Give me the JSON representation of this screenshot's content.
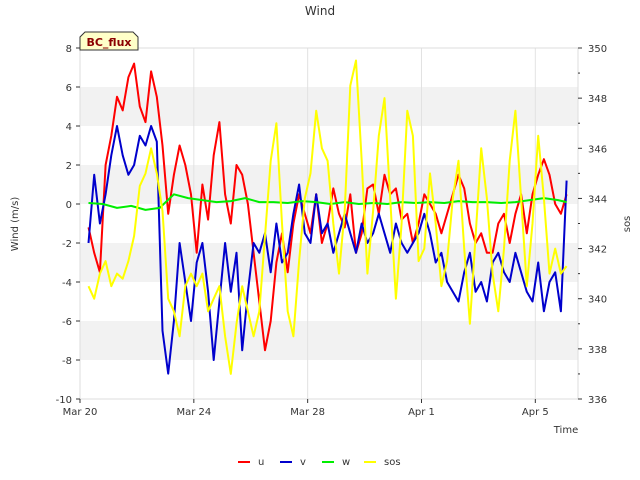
{
  "chart_data": {
    "type": "line",
    "title": "Wind",
    "badge": "BC_flux",
    "xlabel": "Time",
    "ylabel": "Wind (m/s)",
    "y2label": "sos",
    "xlim": [
      0,
      17.5
    ],
    "ylim": [
      -10,
      8
    ],
    "y2lim": [
      336,
      350
    ],
    "x_ticks": [
      {
        "value": 0,
        "label": "Mar 20"
      },
      {
        "value": 4,
        "label": "Mar 24"
      },
      {
        "value": 8,
        "label": "Mar 28"
      },
      {
        "value": 12,
        "label": "Apr 1"
      },
      {
        "value": 16,
        "label": "Apr 5"
      }
    ],
    "y_ticks": [
      -10,
      -8,
      -6,
      -4,
      -2,
      0,
      2,
      4,
      6,
      8
    ],
    "y2_ticks": [
      336,
      338,
      340,
      342,
      344,
      346,
      348,
      350
    ],
    "bands": [
      [
        -8,
        -6
      ],
      [
        -4,
        -2
      ],
      [
        0,
        2
      ],
      [
        4,
        6
      ]
    ],
    "series": [
      {
        "name": "u",
        "axis": "left",
        "color": "#ff0000",
        "x": [
          0.3,
          0.5,
          0.7,
          0.9,
          1.1,
          1.3,
          1.5,
          1.7,
          1.9,
          2.1,
          2.3,
          2.5,
          2.7,
          2.9,
          3.1,
          3.3,
          3.5,
          3.7,
          3.9,
          4.1,
          4.3,
          4.5,
          4.7,
          4.9,
          5.1,
          5.3,
          5.5,
          5.7,
          5.9,
          6.1,
          6.3,
          6.5,
          6.7,
          6.9,
          7.1,
          7.3,
          7.5,
          7.7,
          7.9,
          8.1,
          8.3,
          8.5,
          8.7,
          8.9,
          9.1,
          9.3,
          9.5,
          9.7,
          9.9,
          10.1,
          10.3,
          10.5,
          10.7,
          10.9,
          11.1,
          11.3,
          11.5,
          11.7,
          11.9,
          12.1,
          12.3,
          12.5,
          12.7,
          12.9,
          13.1,
          13.3,
          13.5,
          13.7,
          13.9,
          14.1,
          14.3,
          14.5,
          14.7,
          14.9,
          15.1,
          15.3,
          15.5,
          15.7,
          15.9,
          16.1,
          16.3,
          16.5,
          16.7,
          16.9,
          17.1
        ],
        "values": [
          -1.2,
          -2.5,
          -3.5,
          2.0,
          3.5,
          5.5,
          4.8,
          6.5,
          7.2,
          5.0,
          4.2,
          6.8,
          5.5,
          3.0,
          -0.5,
          1.5,
          3.0,
          2.0,
          0.5,
          -2.5,
          1.0,
          -0.8,
          2.5,
          4.2,
          0.5,
          -1.0,
          2.0,
          1.5,
          0.0,
          -2.5,
          -5.0,
          -7.5,
          -6.0,
          -3.0,
          -1.5,
          -3.5,
          -1.0,
          0.5,
          -0.5,
          -1.5,
          0.5,
          -2.0,
          -1.0,
          0.8,
          -0.5,
          -1.2,
          0.5,
          -2.5,
          -1.5,
          0.8,
          1.0,
          -0.5,
          1.5,
          0.5,
          0.8,
          -0.8,
          -0.5,
          -2.0,
          -1.0,
          0.5,
          0.0,
          -0.5,
          -1.5,
          -0.5,
          0.5,
          1.5,
          0.8,
          -1.0,
          -2.0,
          -1.5,
          -2.5,
          -2.5,
          -1.0,
          -0.5,
          -2.0,
          -0.5,
          0.5,
          -1.5,
          0.5,
          1.5,
          2.3,
          1.5,
          0.0,
          -0.5,
          0.5
        ]
      },
      {
        "name": "v",
        "axis": "left",
        "color": "#0000cc",
        "x": [
          0.3,
          0.5,
          0.7,
          0.9,
          1.1,
          1.3,
          1.5,
          1.7,
          1.9,
          2.1,
          2.3,
          2.5,
          2.7,
          2.9,
          3.1,
          3.3,
          3.5,
          3.7,
          3.9,
          4.1,
          4.3,
          4.5,
          4.7,
          4.9,
          5.1,
          5.3,
          5.5,
          5.7,
          5.9,
          6.1,
          6.3,
          6.5,
          6.7,
          6.9,
          7.1,
          7.3,
          7.5,
          7.7,
          7.9,
          8.1,
          8.3,
          8.5,
          8.7,
          8.9,
          9.1,
          9.3,
          9.5,
          9.7,
          9.9,
          10.1,
          10.3,
          10.5,
          10.7,
          10.9,
          11.1,
          11.3,
          11.5,
          11.7,
          11.9,
          12.1,
          12.3,
          12.5,
          12.7,
          12.9,
          13.1,
          13.3,
          13.5,
          13.7,
          13.9,
          14.1,
          14.3,
          14.5,
          14.7,
          14.9,
          15.1,
          15.3,
          15.5,
          15.7,
          15.9,
          16.1,
          16.3,
          16.5,
          16.7,
          16.9,
          17.1
        ],
        "values": [
          -2.0,
          1.5,
          -1.0,
          0.5,
          2.5,
          4.0,
          2.5,
          1.5,
          2.0,
          3.5,
          3.0,
          4.0,
          3.2,
          -6.5,
          -8.7,
          -6.0,
          -2.0,
          -4.0,
          -6.0,
          -3.0,
          -2.0,
          -4.5,
          -8.0,
          -5.0,
          -2.0,
          -4.5,
          -2.5,
          -7.5,
          -4.5,
          -2.0,
          -2.5,
          -1.5,
          -3.5,
          -1.0,
          -3.0,
          -2.5,
          -0.5,
          1.0,
          -1.5,
          -2.0,
          0.5,
          -1.5,
          -1.0,
          -2.5,
          -1.5,
          -0.5,
          -1.5,
          -2.5,
          -1.0,
          -2.0,
          -1.5,
          -0.5,
          -1.5,
          -2.5,
          -1.0,
          -2.0,
          -2.5,
          -2.0,
          -1.5,
          -0.5,
          -1.5,
          -3.0,
          -2.5,
          -4.0,
          -4.5,
          -5.0,
          -3.5,
          -2.5,
          -4.5,
          -4.0,
          -5.0,
          -3.0,
          -2.5,
          -3.5,
          -4.0,
          -2.5,
          -3.5,
          -4.5,
          -5.0,
          -3.0,
          -5.5,
          -4.0,
          -3.5,
          -5.5,
          1.2
        ]
      },
      {
        "name": "w",
        "axis": "left",
        "color": "#00ee00",
        "x": [
          0.3,
          0.8,
          1.3,
          1.8,
          2.3,
          2.8,
          3.3,
          3.8,
          4.3,
          4.8,
          5.3,
          5.8,
          6.3,
          6.8,
          7.3,
          7.8,
          8.3,
          8.8,
          9.3,
          9.8,
          10.3,
          10.8,
          11.3,
          11.8,
          12.3,
          12.8,
          13.3,
          13.8,
          14.3,
          14.8,
          15.3,
          15.8,
          16.3,
          16.8,
          17.1
        ],
        "values": [
          0.05,
          0.0,
          -0.2,
          -0.1,
          -0.3,
          -0.2,
          0.5,
          0.3,
          0.2,
          0.1,
          0.15,
          0.3,
          0.1,
          0.1,
          0.05,
          0.15,
          0.1,
          0.0,
          0.1,
          0.0,
          0.05,
          0.0,
          0.1,
          0.05,
          0.1,
          0.05,
          0.15,
          0.1,
          0.1,
          0.05,
          0.1,
          0.2,
          0.3,
          0.2,
          0.1
        ]
      },
      {
        "name": "sos",
        "axis": "right",
        "color": "#ffff00",
        "x": [
          0.3,
          0.5,
          0.7,
          0.9,
          1.1,
          1.3,
          1.5,
          1.7,
          1.9,
          2.1,
          2.3,
          2.5,
          2.7,
          2.9,
          3.1,
          3.3,
          3.5,
          3.7,
          3.9,
          4.1,
          4.3,
          4.5,
          4.7,
          4.9,
          5.1,
          5.3,
          5.5,
          5.7,
          5.9,
          6.1,
          6.3,
          6.5,
          6.7,
          6.9,
          7.1,
          7.3,
          7.5,
          7.7,
          7.9,
          8.1,
          8.3,
          8.5,
          8.7,
          8.9,
          9.1,
          9.3,
          9.5,
          9.7,
          9.9,
          10.1,
          10.3,
          10.5,
          10.7,
          10.9,
          11.1,
          11.3,
          11.5,
          11.7,
          11.9,
          12.1,
          12.3,
          12.5,
          12.7,
          12.9,
          13.1,
          13.3,
          13.5,
          13.7,
          13.9,
          14.1,
          14.3,
          14.5,
          14.7,
          14.9,
          15.1,
          15.3,
          15.5,
          15.7,
          15.9,
          16.1,
          16.3,
          16.5,
          16.7,
          16.9,
          17.1
        ],
        "values": [
          340.5,
          340.0,
          341.0,
          341.5,
          340.5,
          341.0,
          340.8,
          341.5,
          342.5,
          344.5,
          345.0,
          346.0,
          345.0,
          343.5,
          340.0,
          339.5,
          338.5,
          340.5,
          341.0,
          340.5,
          341.0,
          339.5,
          340.0,
          340.5,
          338.5,
          337.0,
          339.0,
          340.5,
          339.5,
          338.5,
          339.5,
          342.5,
          345.5,
          347.0,
          343.0,
          339.5,
          338.5,
          341.5,
          344.0,
          345.0,
          347.5,
          346.0,
          345.5,
          343.0,
          341.0,
          343.5,
          348.5,
          349.5,
          345.5,
          341.0,
          343.5,
          346.5,
          348.0,
          344.0,
          340.0,
          343.0,
          347.5,
          346.5,
          341.5,
          342.0,
          345.0,
          343.0,
          340.5,
          341.5,
          344.0,
          345.5,
          342.0,
          339.0,
          342.5,
          346.0,
          344.0,
          341.0,
          339.5,
          342.0,
          345.5,
          347.5,
          344.0,
          340.5,
          343.0,
          346.5,
          344.0,
          341.0,
          342.0,
          341.0,
          341.3
        ]
      }
    ]
  }
}
